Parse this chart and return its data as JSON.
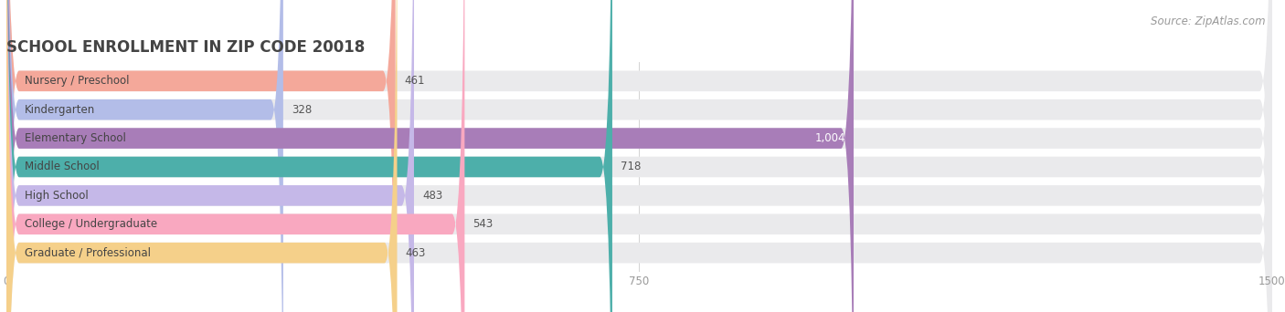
{
  "title": "SCHOOL ENROLLMENT IN ZIP CODE 20018",
  "source": "Source: ZipAtlas.com",
  "categories": [
    "Nursery / Preschool",
    "Kindergarten",
    "Elementary School",
    "Middle School",
    "High School",
    "College / Undergraduate",
    "Graduate / Professional"
  ],
  "values": [
    461,
    328,
    1004,
    718,
    483,
    543,
    463
  ],
  "bar_colors": [
    "#F4A89A",
    "#B3BDE8",
    "#A87DB8",
    "#4DAFAA",
    "#C5B8E8",
    "#F9A8C0",
    "#F5D08A"
  ],
  "bar_bg_color": "#EAEAEC",
  "xlim": [
    0,
    1500
  ],
  "xticks": [
    0,
    750,
    1500
  ],
  "title_fontsize": 12,
  "label_fontsize": 8.5,
  "value_fontsize": 8.5,
  "source_fontsize": 8.5,
  "background_color": "#FFFFFF"
}
